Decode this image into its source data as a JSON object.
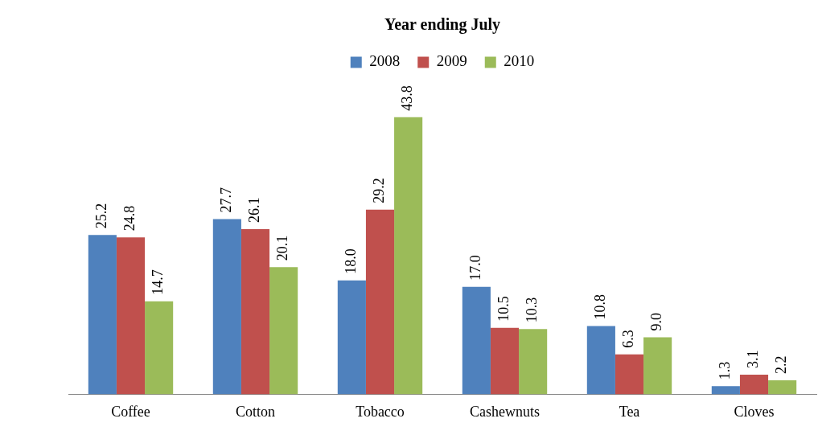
{
  "chart_data": {
    "type": "bar",
    "title": "Year ending July",
    "categories": [
      "Coffee",
      "Cotton",
      "Tobacco",
      "Cashewnuts",
      "Tea",
      "Cloves"
    ],
    "series": [
      {
        "name": "2008",
        "color": "#4f81bd",
        "values": [
          25.2,
          27.7,
          18.0,
          17.0,
          10.8,
          1.3
        ],
        "value_labels": [
          "25.2",
          "27.7",
          "18.0",
          "17.0",
          "10.8",
          "1.3"
        ]
      },
      {
        "name": "2009",
        "color": "#c0504d",
        "values": [
          24.8,
          26.1,
          29.2,
          10.5,
          6.3,
          3.1
        ],
        "value_labels": [
          "24.8",
          "26.1",
          "29.2",
          "10.5",
          "6.3",
          "3.1"
        ]
      },
      {
        "name": "2010",
        "color": "#9bbb59",
        "values": [
          14.7,
          20.1,
          43.8,
          10.3,
          9.0,
          2.2
        ],
        "value_labels": [
          "14.7",
          "20.1",
          "43.8",
          "10.3",
          "9.0",
          "2.2"
        ]
      }
    ],
    "legend": "top",
    "grid": false
  }
}
